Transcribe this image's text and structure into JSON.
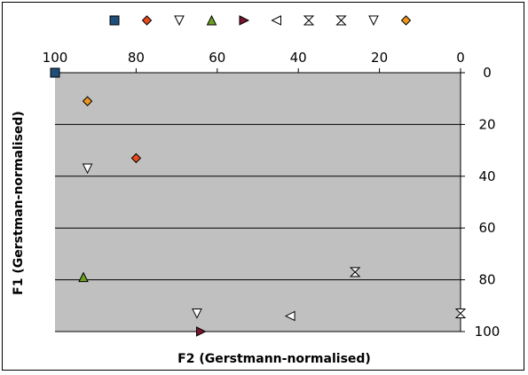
{
  "chart_data": {
    "type": "scatter",
    "title": "",
    "xlabel": "F2 (Gerstmann-normalised)",
    "ylabel": "F1 (Gerstman-normalised)",
    "x_axis_position": "top",
    "x_axis_reversed": true,
    "y_axis_position": "right",
    "y_axis_reversed": true,
    "xlim": [
      0,
      100
    ],
    "ylim": [
      0,
      100
    ],
    "x_ticks": [
      "100",
      "80",
      "60",
      "40",
      "20",
      "0"
    ],
    "y_ticks": [
      "0",
      "20",
      "40",
      "60",
      "80",
      "100"
    ],
    "grid": "horizontal",
    "legend_position": "top",
    "plot_background": "#c0c0c0",
    "series": [
      {
        "marker": "square-filled",
        "color": "#1f4e79",
        "points": [
          {
            "x": 100,
            "y": 0
          }
        ]
      },
      {
        "marker": "diamond-filled",
        "color": "#e8491d",
        "points": [
          {
            "x": 80,
            "y": 33
          }
        ]
      },
      {
        "marker": "triangle-down-open",
        "color": "#ffffff",
        "points": [
          {
            "x": 92,
            "y": 37
          }
        ]
      },
      {
        "marker": "triangle-up-filled",
        "color": "#6aa121",
        "points": [
          {
            "x": 93,
            "y": 79
          }
        ]
      },
      {
        "marker": "triangle-right-filled",
        "color": "#7b1431",
        "points": [
          {
            "x": 64,
            "y": 100
          }
        ]
      },
      {
        "marker": "triangle-left-open",
        "color": "#ffffff",
        "points": [
          {
            "x": 42,
            "y": 94
          }
        ]
      },
      {
        "marker": "bowtie-open",
        "color": "#ffffff",
        "points": [
          {
            "x": 26,
            "y": 77
          }
        ]
      },
      {
        "marker": "hourglass-open",
        "color": "#ffffff",
        "points": [
          {
            "x": 0,
            "y": 93
          }
        ]
      },
      {
        "marker": "triangle-down-open",
        "color": "#ffffff",
        "points": [
          {
            "x": 65,
            "y": 93
          }
        ]
      },
      {
        "marker": "diamond-filled",
        "color": "#f0951e",
        "points": [
          {
            "x": 92,
            "y": 11
          }
        ]
      }
    ]
  }
}
